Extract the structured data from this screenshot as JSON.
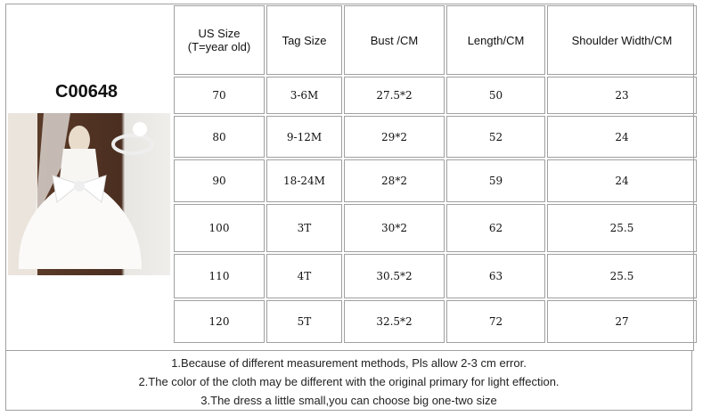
{
  "product_code": "C00648",
  "headers": [
    "US Size\n(T=year old)",
    "Tag Size",
    "Bust /CM",
    "Length/CM",
    "Shoulder Width/CM"
  ],
  "header_us_line1": "US Size",
  "header_us_line2": "(T=year old)",
  "rows": [
    [
      "70",
      "3-6M",
      "27.5*2",
      "50",
      "23"
    ],
    [
      "80",
      "9-12M",
      "29*2",
      "52",
      "24"
    ],
    [
      "90",
      "18-24M",
      "28*2",
      "59",
      "24"
    ],
    [
      "100",
      "3T",
      "30*2",
      "62",
      "25.5"
    ],
    [
      "110",
      "4T",
      "30.5*2",
      "63",
      "25.5"
    ],
    [
      "120",
      "5T",
      "32.5*2",
      "72",
      "27"
    ]
  ],
  "notes": [
    "1.Because of different measurement methods, Pls allow 2-3 cm error.",
    "2.The color of the cloth may be different with the original primary for light effection.",
    "3.The dress a little small,you can choose big one-two size"
  ]
}
